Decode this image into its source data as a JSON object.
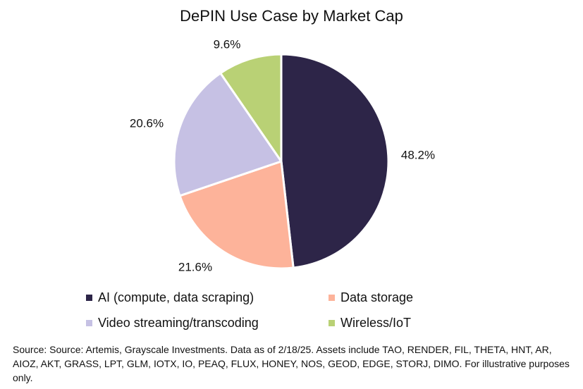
{
  "chart_data": {
    "type": "pie",
    "title": "DePIN Use Case by Market Cap",
    "slices": [
      {
        "name": "AI (compute, data scraping)",
        "value": 48.2,
        "label": "48.2%",
        "color": "#2d2548"
      },
      {
        "name": "Data storage",
        "value": 21.6,
        "label": "21.6%",
        "color": "#fdb39a"
      },
      {
        "name": "Video streaming/transcoding",
        "value": 20.6,
        "label": "20.6%",
        "color": "#c6c1e4"
      },
      {
        "name": "Wireless/IoT",
        "value": 9.6,
        "label": "9.6%",
        "color": "#b9d175"
      }
    ],
    "legend_position": "bottom"
  },
  "source_note": "Source: Source: Artemis, Grayscale Investments. Data as of 2/18/25. Assets include TAO, RENDER, FIL, THETA, HNT, AR, AIOZ, AKT, GRASS, LPT, GLM, IOTX, IO, PEAQ, FLUX, HONEY, NOS, GEOD, EDGE, STORJ, DIMO. For illustrative purposes only."
}
